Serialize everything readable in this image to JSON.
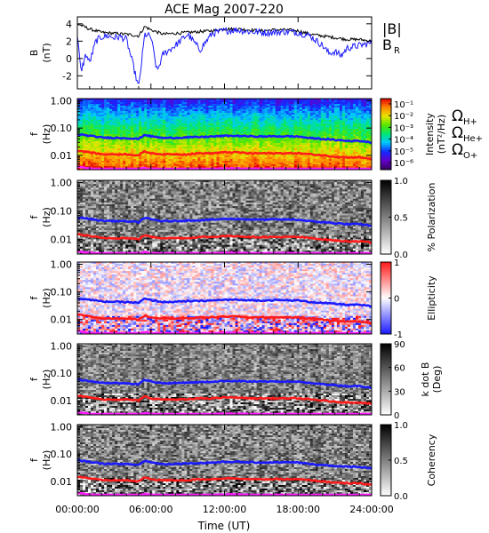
{
  "figure": {
    "title": "ACE Mag 2007-220",
    "xlabel": "Time (UT)",
    "time_ticks": [
      "00:00:00",
      "06:00:00",
      "12:00:00",
      "18:00:00",
      "24:00:00"
    ]
  },
  "legend_panel1": {
    "b_total": "|B|",
    "b_radial": "B",
    "b_radial_sub": "R",
    "colors": {
      "b_total": "#000000",
      "b_radial": "#1a1aff"
    }
  },
  "legend_freqs": [
    {
      "sym": "Ω",
      "sub": "H+",
      "color": "#1a1aff"
    },
    {
      "sym": "Ω",
      "sub": "He+",
      "color": "#ff1a1a"
    },
    {
      "sym": "Ω",
      "sub": "O+",
      "color": "#ff1aff"
    }
  ],
  "chart_data": [
    {
      "type": "line",
      "panel": "B",
      "ylabel": "B",
      "yunit": "(nT)",
      "ylim": [
        -3.5,
        4.8
      ],
      "yticks": [
        "4",
        "2",
        "0",
        "-2"
      ],
      "yticks_values": [
        4,
        2,
        0,
        -2
      ],
      "x_unit": "hours UT",
      "xlim": [
        0,
        24
      ],
      "series": [
        {
          "name": "|B|",
          "color": "#000000",
          "x": [
            0,
            1,
            2,
            3,
            4,
            5,
            5.5,
            6,
            7,
            8,
            9,
            10,
            11,
            12,
            13,
            14,
            15,
            16,
            17,
            18,
            19,
            20,
            21,
            22,
            23,
            24
          ],
          "values": [
            4.0,
            3.4,
            3.0,
            2.9,
            2.8,
            2.6,
            3.7,
            3.3,
            2.8,
            2.9,
            3.0,
            3.1,
            3.2,
            3.4,
            3.4,
            3.3,
            3.2,
            3.3,
            3.3,
            3.2,
            2.8,
            2.6,
            2.4,
            2.2,
            2.2,
            2.0
          ]
        },
        {
          "name": "B_R",
          "color": "#1a1aff",
          "x": [
            0,
            0.3,
            0.7,
            1,
            1.5,
            2,
            2.5,
            3,
            3.5,
            4,
            4.5,
            5,
            5.5,
            6,
            6.5,
            7,
            8,
            9,
            10,
            11,
            12,
            13,
            14,
            15,
            16,
            17,
            18,
            19,
            20,
            20.5,
            21,
            21.5,
            22,
            23,
            24
          ],
          "values": [
            2.5,
            -1.5,
            0.5,
            -0.5,
            2.0,
            2.5,
            2.6,
            2.4,
            2.5,
            2.2,
            -0.5,
            -3.4,
            2.8,
            2.5,
            -1.5,
            0.5,
            1.5,
            2.8,
            1.0,
            2.9,
            3.2,
            3.3,
            3.1,
            3.0,
            3.0,
            3.1,
            3.0,
            2.6,
            1.5,
            0.6,
            0.8,
            0.3,
            1.2,
            1.5,
            1.8
          ]
        }
      ]
    },
    {
      "type": "heatmap",
      "panel": "Intensity",
      "ylabel": "f",
      "yunit": "(Hz)",
      "yscale": "log",
      "ylim": [
        0.003,
        1.2
      ],
      "yticks": [
        "1.00",
        "0.10",
        "0.01"
      ],
      "yticks_values": [
        1.0,
        0.1,
        0.01
      ],
      "colorbar_label": "Intensity",
      "colorbar_unit": "(nT²/Hz)",
      "colorbar_ticks": [
        "10⁻¹",
        "10⁻²",
        "10⁻³",
        "10⁻⁴",
        "10⁻⁵",
        "10⁻⁶"
      ],
      "colorbar_range": [
        1e-06,
        0.3
      ],
      "colormap": "rainbow"
    },
    {
      "type": "heatmap",
      "panel": "% Polarization",
      "ylabel": "f",
      "yunit": "(Hz)",
      "yscale": "log",
      "ylim": [
        0.003,
        1.2
      ],
      "yticks": [
        "1.00",
        "0.10",
        "0.01"
      ],
      "yticks_values": [
        1.0,
        0.1,
        0.01
      ],
      "colorbar_label": "% Polarization",
      "colorbar_ticks": [
        "1.0",
        "0.5",
        "0.0"
      ],
      "colorbar_range": [
        0,
        1
      ],
      "colormap": "gray"
    },
    {
      "type": "heatmap",
      "panel": "Ellipticity",
      "ylabel": "f",
      "yunit": "(Hz)",
      "yscale": "log",
      "ylim": [
        0.003,
        1.2
      ],
      "yticks": [
        "1.00",
        "0.10",
        "0.01"
      ],
      "yticks_values": [
        1.0,
        0.1,
        0.01
      ],
      "colorbar_label": "Ellipticity",
      "colorbar_ticks": [
        "1",
        "0",
        "-1"
      ],
      "colorbar_range": [
        -1,
        1
      ],
      "colormap": "bwr"
    },
    {
      "type": "heatmap",
      "panel": "k dot B",
      "ylabel": "f",
      "yunit": "(Hz)",
      "yscale": "log",
      "ylim": [
        0.003,
        1.2
      ],
      "yticks": [
        "1.00",
        "0.10",
        "0.01"
      ],
      "yticks_values": [
        1.0,
        0.1,
        0.01
      ],
      "colorbar_label": "k dot B",
      "colorbar_unit": "(Deg)",
      "colorbar_ticks": [
        "90",
        "60",
        "30",
        "0"
      ],
      "colorbar_range": [
        0,
        90
      ],
      "colormap": "gray"
    },
    {
      "type": "heatmap",
      "panel": "Coherency",
      "ylabel": "f",
      "yunit": "(Hz)",
      "yscale": "log",
      "ylim": [
        0.003,
        1.2
      ],
      "yticks": [
        "1.00",
        "0.10",
        "0.01"
      ],
      "yticks_values": [
        1.0,
        0.1,
        0.01
      ],
      "colorbar_label": "Coherency",
      "colorbar_ticks": [
        "1.0",
        "0.5",
        "0.0"
      ],
      "colorbar_range": [
        0,
        1
      ],
      "colormap": "gray"
    }
  ],
  "gyro_lines": {
    "x": [
      0,
      1,
      2,
      3,
      4,
      5,
      5.5,
      6,
      7,
      8,
      9,
      10,
      11,
      12,
      13,
      14,
      15,
      16,
      17,
      18,
      19,
      20,
      21,
      22,
      23,
      24
    ],
    "H+": [
      0.06,
      0.052,
      0.045,
      0.044,
      0.043,
      0.04,
      0.057,
      0.05,
      0.043,
      0.044,
      0.046,
      0.047,
      0.049,
      0.052,
      0.052,
      0.05,
      0.049,
      0.05,
      0.05,
      0.049,
      0.043,
      0.04,
      0.037,
      0.034,
      0.034,
      0.03
    ],
    "He+": [
      0.015,
      0.013,
      0.011,
      0.011,
      0.011,
      0.01,
      0.014,
      0.012,
      0.011,
      0.011,
      0.011,
      0.012,
      0.012,
      0.013,
      0.013,
      0.012,
      0.012,
      0.012,
      0.012,
      0.012,
      0.011,
      0.01,
      0.009,
      0.0085,
      0.0085,
      0.0075
    ],
    "O+": [
      0.0038,
      0.0033,
      0.003,
      0.003,
      0.003,
      0.003,
      0.0035,
      0.0032,
      0.003,
      0.003,
      0.003,
      0.003,
      0.0031,
      0.0033,
      0.0033,
      0.0032,
      0.0031,
      0.0032,
      0.0032,
      0.0031,
      0.003,
      0.003,
      0.003,
      0.003,
      0.003,
      0.003
    ]
  }
}
